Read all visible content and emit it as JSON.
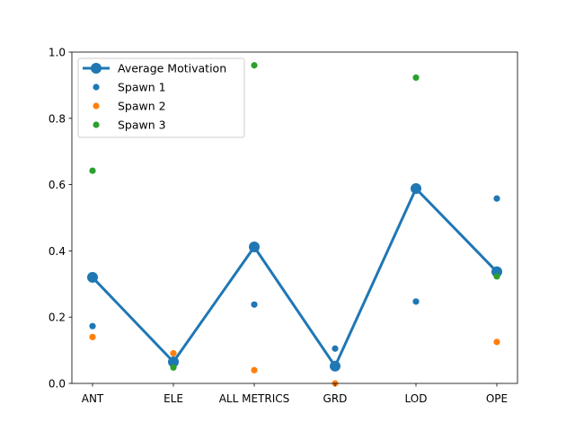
{
  "chart_data": {
    "type": "line",
    "categories": [
      "ANT",
      "ELE",
      "ALL METRICS",
      "GRD",
      "LOD",
      "OPE"
    ],
    "ylim": [
      0,
      1.0
    ],
    "yticks": [
      "0.0",
      "0.2",
      "0.4",
      "0.6",
      "0.8",
      "1.0"
    ],
    "grid": false,
    "legend_position": "top-left",
    "series": [
      {
        "name": "Average Motivation",
        "kind": "line",
        "color": "#1f77b4",
        "values": [
          0.32,
          0.065,
          0.412,
          0.052,
          0.588,
          0.337
        ]
      },
      {
        "name": "Spawn 1",
        "kind": "scatter",
        "color": "#1f77b4",
        "values": [
          0.173,
          0.055,
          0.238,
          0.105,
          0.247,
          0.558
        ]
      },
      {
        "name": "Spawn 2",
        "kind": "scatter",
        "color": "#ff7f0e",
        "values": [
          0.14,
          0.091,
          0.04,
          0.0,
          null,
          0.125
        ]
      },
      {
        "name": "Spawn 3",
        "kind": "scatter",
        "color": "#2ca02c",
        "values": [
          0.642,
          0.048,
          0.96,
          null,
          0.923,
          0.323
        ]
      }
    ]
  }
}
